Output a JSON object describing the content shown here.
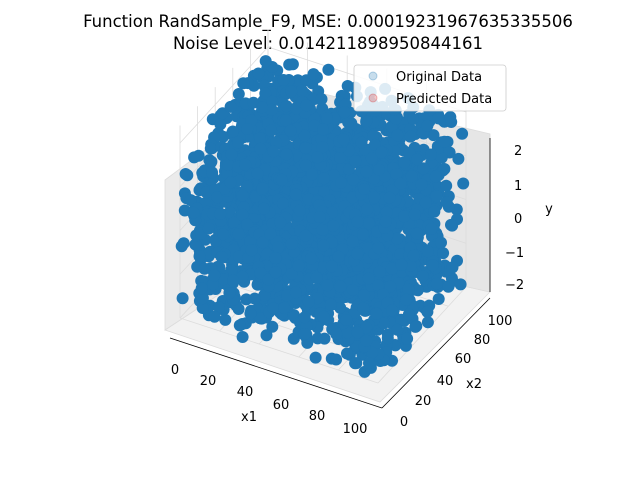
{
  "title_line1": "Function RandSample_F9, MSE: 0.00019231967635335506",
  "title_line2": "Noise Level: 0.014211898950844161",
  "colors": {
    "original": "#1f77b4",
    "predicted": "#d62728",
    "pane": "#f2f2f2",
    "grid": "#dcdcdc"
  },
  "chart_data": {
    "type": "scatter",
    "projection": "3d",
    "title": "Function RandSample_F9, MSE: 0.00019231967635335506\nNoise Level: 0.014211898950844161",
    "xlabel": "x1",
    "ylabel": "x2",
    "zlabel": "y",
    "xlim": [
      0,
      100
    ],
    "ylim": [
      0,
      100
    ],
    "zlim": [
      -2,
      2
    ],
    "xticks": [
      "0",
      "20",
      "40",
      "60",
      "80",
      "100"
    ],
    "yticks": [
      "0",
      "20",
      "40",
      "60",
      "80",
      "100"
    ],
    "zticks": [
      "−2",
      "−1",
      "0",
      "1",
      "2"
    ],
    "grid": true,
    "legend": {
      "placement": "top-right",
      "entries": [
        "Original Data",
        "Predicted Data"
      ]
    },
    "series": [
      {
        "name": "Original Data",
        "description": "dense point cloud filling the whole domain",
        "x_range": [
          0,
          100
        ],
        "y_range": [
          0,
          100
        ],
        "z_range": [
          -2,
          2
        ]
      },
      {
        "name": "Predicted Data",
        "description": "overlaps original data, hidden beneath it",
        "x_range": [
          0,
          100
        ],
        "y_range": [
          0,
          100
        ],
        "z_range": [
          -2,
          2
        ]
      }
    ]
  }
}
